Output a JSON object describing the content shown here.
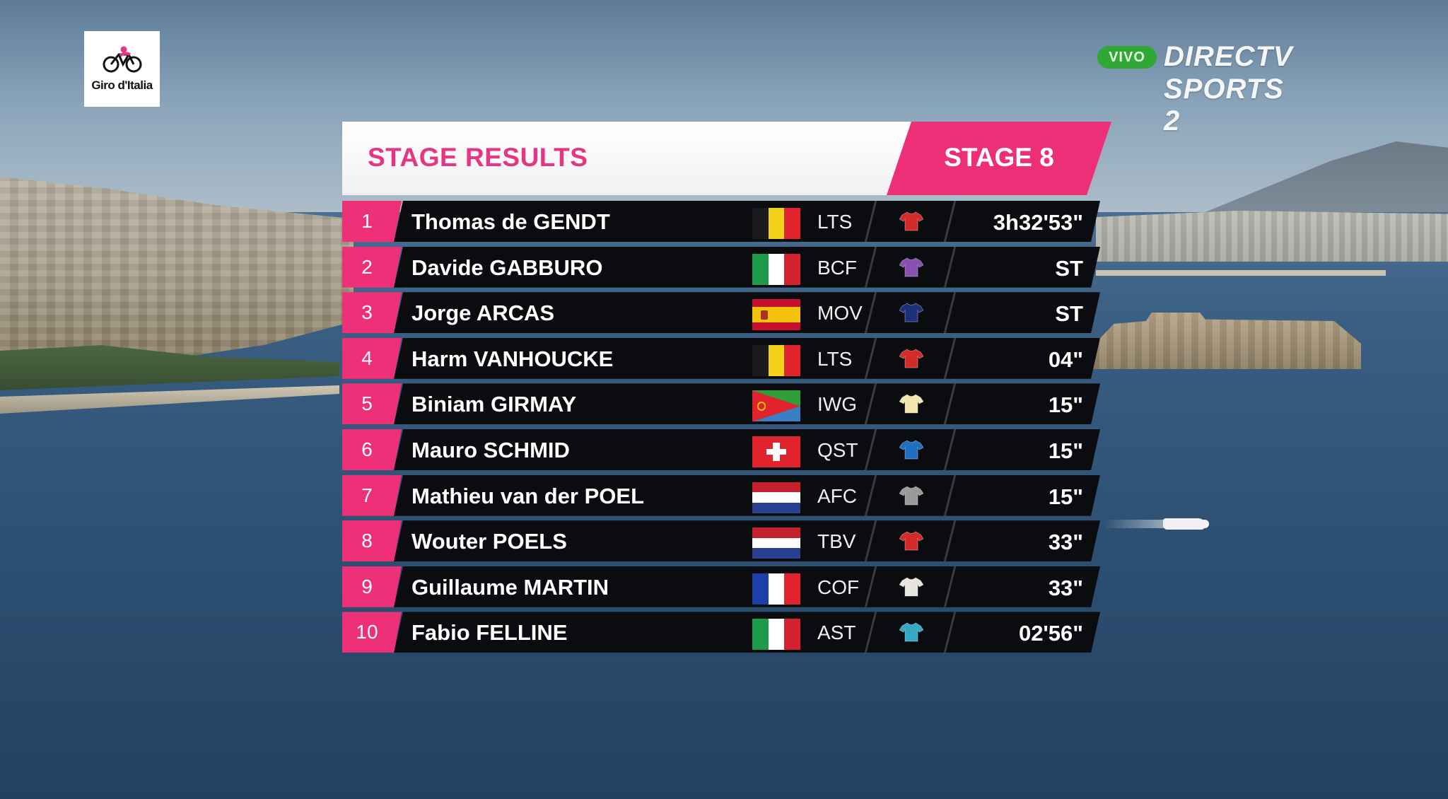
{
  "broadcaster": {
    "live_badge": "VIVO",
    "name_line1": "DIRECTV",
    "name_line2": "SPORTS 2"
  },
  "event_logo": {
    "text": "Giro d'Italia",
    "icon": "bicycle-icon"
  },
  "results": {
    "title": "STAGE RESULTS",
    "stage": "STAGE 8",
    "accent_color": "#ed2f78",
    "rows": [
      {
        "pos": "1",
        "rider": "Thomas de GENDT",
        "flag": "belgium",
        "team": "LTS",
        "jersey_color": "#d42a2a",
        "time": "3h32'53\""
      },
      {
        "pos": "2",
        "rider": "Davide GABBURO",
        "flag": "italy",
        "team": "BCF",
        "jersey_color": "#8a4fb0",
        "time": "ST"
      },
      {
        "pos": "3",
        "rider": "Jorge ARCAS",
        "flag": "spain",
        "team": "MOV",
        "jersey_color": "#1d2f7a",
        "time": "ST"
      },
      {
        "pos": "4",
        "rider": "Harm VANHOUCKE",
        "flag": "belgium",
        "team": "LTS",
        "jersey_color": "#d42a2a",
        "time": "04\""
      },
      {
        "pos": "5",
        "rider": "Biniam GIRMAY",
        "flag": "eritrea",
        "team": "IWG",
        "jersey_color": "#f1e6b0",
        "time": "15\""
      },
      {
        "pos": "6",
        "rider": "Mauro SCHMID",
        "flag": "switzerland",
        "team": "QST",
        "jersey_color": "#1f6fc0",
        "time": "15\""
      },
      {
        "pos": "7",
        "rider": "Mathieu van der POEL",
        "flag": "netherlands",
        "team": "AFC",
        "jersey_color": "#9a9a9a",
        "time": "15\""
      },
      {
        "pos": "8",
        "rider": "Wouter POELS",
        "flag": "netherlands",
        "team": "TBV",
        "jersey_color": "#d42a2a",
        "time": "33\""
      },
      {
        "pos": "9",
        "rider": "Guillaume MARTIN",
        "flag": "france",
        "team": "COF",
        "jersey_color": "#e8e4e0",
        "time": "33\""
      },
      {
        "pos": "10",
        "rider": "Fabio FELLINE",
        "flag": "italy",
        "team": "AST",
        "jersey_color": "#33a9c4",
        "time": "02'56\""
      }
    ]
  }
}
